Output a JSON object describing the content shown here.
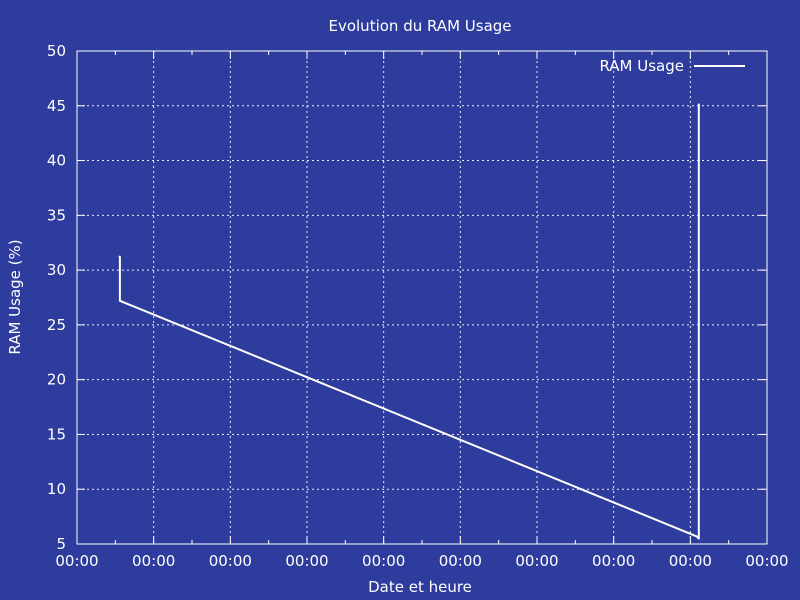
{
  "chart_data": {
    "type": "line",
    "title": "Evolution du RAM Usage",
    "xlabel": "Date et heure",
    "ylabel": "RAM Usage (%)",
    "ylim": [
      5,
      50
    ],
    "yticks": [
      5,
      10,
      15,
      20,
      25,
      30,
      35,
      40,
      45,
      50
    ],
    "xlim": [
      0,
      9
    ],
    "xticks": [
      0,
      1,
      2,
      3,
      4,
      5,
      6,
      7,
      8,
      9
    ],
    "xtick_labels": [
      "00:00",
      "00:00",
      "00:00",
      "00:00",
      "00:00",
      "00:00",
      "00:00",
      "00:00",
      "00:00",
      "00:00"
    ],
    "grid": true,
    "legend_position": "top-right",
    "colors": {
      "background": "#2e3c9d",
      "line": "#ffffff",
      "grid": "#ffffff"
    },
    "series": [
      {
        "name": "RAM Usage",
        "x": [
          0.55,
          0.56,
          0.56,
          8.08,
          8.11,
          8.11
        ],
        "y": [
          31.3,
          31.2,
          27.2,
          5.7,
          5.5,
          45.2
        ]
      }
    ]
  }
}
